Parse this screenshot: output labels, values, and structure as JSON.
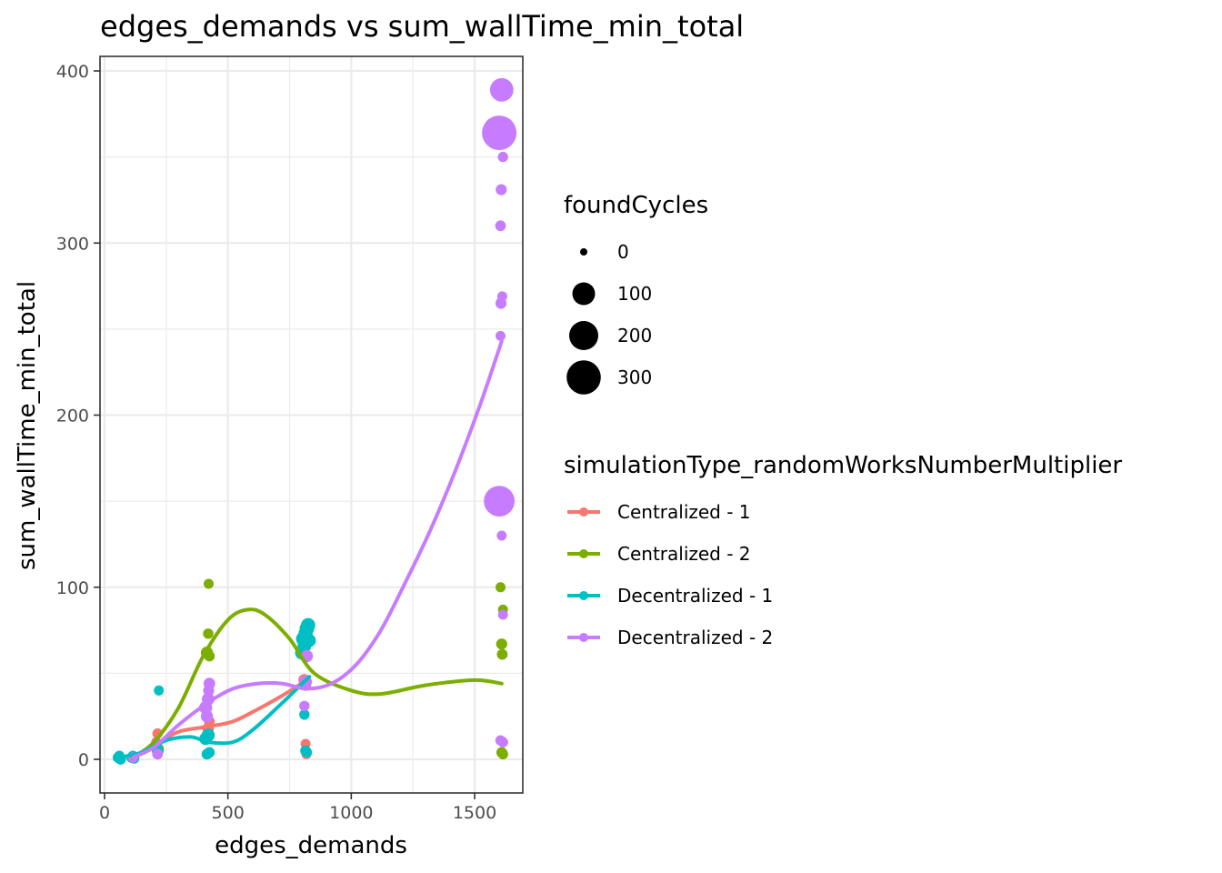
{
  "chart_data": {
    "type": "scatter",
    "title": "edges_demands  vs  sum_wallTime_min_total",
    "xlabel": "edges_demands",
    "ylabel": "sum_wallTime_min_total",
    "xlim": [
      -20,
      1700
    ],
    "ylim": [
      -18,
      405
    ],
    "x_ticks": [
      "0",
      "500",
      "1000",
      "1500"
    ],
    "y_ticks": [
      "0",
      "100",
      "200",
      "300",
      "400"
    ],
    "grid": true,
    "size_legend": {
      "title": "foundCycles",
      "entries": [
        {
          "label": "0",
          "value": 0
        },
        {
          "label": "100",
          "value": 100
        },
        {
          "label": "200",
          "value": 200
        },
        {
          "label": "300",
          "value": 300
        }
      ]
    },
    "color_legend": {
      "title": "simulationType_randomWorksNumberMultiplier",
      "placement": "right"
    },
    "series": [
      {
        "name": "Centralized - 1",
        "color": "#F8766D",
        "points": [
          {
            "x": 60,
            "y": 0.5,
            "size": 2
          },
          {
            "x": 110,
            "y": 1.5,
            "size": 2
          },
          {
            "x": 210,
            "y": 10,
            "size": 4
          },
          {
            "x": 215,
            "y": 15,
            "size": 4
          },
          {
            "x": 220,
            "y": 5,
            "size": 3
          },
          {
            "x": 415,
            "y": 14,
            "size": 5
          },
          {
            "x": 420,
            "y": 18,
            "size": 8
          },
          {
            "x": 425,
            "y": 22,
            "size": 5
          },
          {
            "x": 810,
            "y": 46,
            "size": 10
          },
          {
            "x": 815,
            "y": 9,
            "size": 3
          },
          {
            "x": 818,
            "y": 3,
            "size": 3
          },
          {
            "x": 815,
            "y": 43,
            "size": 6
          }
        ],
        "trend": {
          "x": [
            110,
            200,
            300,
            420,
            520,
            620,
            720,
            820
          ],
          "y": [
            1,
            8,
            16,
            19,
            22,
            29,
            37,
            46
          ]
        }
      },
      {
        "name": "Centralized - 2",
        "color": "#7CAE00",
        "points": [
          {
            "x": 60,
            "y": 1,
            "size": 2
          },
          {
            "x": 115,
            "y": 2,
            "size": 3
          },
          {
            "x": 220,
            "y": 6,
            "size": 4
          },
          {
            "x": 415,
            "y": 62,
            "size": 10
          },
          {
            "x": 420,
            "y": 73,
            "size": 4
          },
          {
            "x": 422,
            "y": 102,
            "size": 3
          },
          {
            "x": 425,
            "y": 60,
            "size": 5
          },
          {
            "x": 1605,
            "y": 100,
            "size": 3
          },
          {
            "x": 1610,
            "y": 67,
            "size": 6
          },
          {
            "x": 1612,
            "y": 61,
            "size": 5
          },
          {
            "x": 1615,
            "y": 87,
            "size": 3
          },
          {
            "x": 1610,
            "y": 4,
            "size": 5
          },
          {
            "x": 1615,
            "y": 3,
            "size": 4
          }
        ],
        "trend": {
          "x": [
            115,
            200,
            300,
            400,
            500,
            580,
            650,
            750,
            850,
            1000,
            1120,
            1300,
            1500,
            1610
          ],
          "y": [
            1,
            10,
            30,
            60,
            81,
            87,
            84,
            70,
            50,
            40,
            38,
            43,
            46,
            44
          ]
        }
      },
      {
        "name": "Decentralized - 1",
        "color": "#00BFC4",
        "points": [
          {
            "x": 55,
            "y": 1,
            "size": 5
          },
          {
            "x": 60,
            "y": 2,
            "size": 4
          },
          {
            "x": 65,
            "y": 0,
            "size": 5
          },
          {
            "x": 110,
            "y": 1,
            "size": 5
          },
          {
            "x": 115,
            "y": 2,
            "size": 4
          },
          {
            "x": 120,
            "y": 0.5,
            "size": 4
          },
          {
            "x": 210,
            "y": 8,
            "size": 8
          },
          {
            "x": 215,
            "y": 5,
            "size": 8
          },
          {
            "x": 220,
            "y": 40,
            "size": 3
          },
          {
            "x": 410,
            "y": 12,
            "size": 12
          },
          {
            "x": 420,
            "y": 14,
            "size": 14
          },
          {
            "x": 415,
            "y": 3,
            "size": 5
          },
          {
            "x": 425,
            "y": 4,
            "size": 5
          },
          {
            "x": 800,
            "y": 62,
            "size": 18
          },
          {
            "x": 805,
            "y": 70,
            "size": 20
          },
          {
            "x": 810,
            "y": 66,
            "size": 18
          },
          {
            "x": 815,
            "y": 73,
            "size": 20
          },
          {
            "x": 820,
            "y": 76,
            "size": 22
          },
          {
            "x": 825,
            "y": 78,
            "size": 20
          },
          {
            "x": 830,
            "y": 69,
            "size": 14
          },
          {
            "x": 810,
            "y": 26,
            "size": 4
          },
          {
            "x": 815,
            "y": 5,
            "size": 5
          },
          {
            "x": 820,
            "y": 4,
            "size": 4
          }
        ],
        "trend": {
          "x": [
            55,
            150,
            250,
            350,
            420,
            520,
            600,
            700,
            780,
            830
          ],
          "y": [
            1,
            4,
            11,
            13,
            10,
            10,
            17,
            30,
            41,
            48
          ]
        }
      },
      {
        "name": "Decentralized - 2",
        "color": "#C77CFF",
        "points": [
          {
            "x": 115,
            "y": 1,
            "size": 4
          },
          {
            "x": 215,
            "y": 3,
            "size": 5
          },
          {
            "x": 410,
            "y": 30,
            "size": 14
          },
          {
            "x": 415,
            "y": 25,
            "size": 10
          },
          {
            "x": 420,
            "y": 35,
            "size": 12
          },
          {
            "x": 425,
            "y": 44,
            "size": 8
          },
          {
            "x": 422,
            "y": 40,
            "size": 6
          },
          {
            "x": 810,
            "y": 31,
            "size": 4
          },
          {
            "x": 815,
            "y": 45,
            "size": 12
          },
          {
            "x": 820,
            "y": 60,
            "size": 10
          },
          {
            "x": 1600,
            "y": 364,
            "size": 310
          },
          {
            "x": 1610,
            "y": 389,
            "size": 110
          },
          {
            "x": 1600,
            "y": 150,
            "size": 230
          },
          {
            "x": 1615,
            "y": 350,
            "size": 4
          },
          {
            "x": 1608,
            "y": 331,
            "size": 6
          },
          {
            "x": 1605,
            "y": 310,
            "size": 5
          },
          {
            "x": 1612,
            "y": 269,
            "size": 3
          },
          {
            "x": 1607,
            "y": 265,
            "size": 6
          },
          {
            "x": 1605,
            "y": 246,
            "size": 3
          },
          {
            "x": 1610,
            "y": 130,
            "size": 3
          },
          {
            "x": 1615,
            "y": 84,
            "size": 3
          },
          {
            "x": 1605,
            "y": 11,
            "size": 4
          },
          {
            "x": 1615,
            "y": 10,
            "size": 4
          }
        ],
        "trend": {
          "x": [
            115,
            200,
            300,
            420,
            520,
            620,
            720,
            820,
            920,
            1020,
            1120,
            1220,
            1320,
            1420,
            1520,
            1610
          ],
          "y": [
            1,
            7,
            20,
            33,
            41,
            44,
            44,
            41,
            44,
            55,
            75,
            103,
            133,
            167,
            205,
            243
          ]
        }
      }
    ]
  }
}
